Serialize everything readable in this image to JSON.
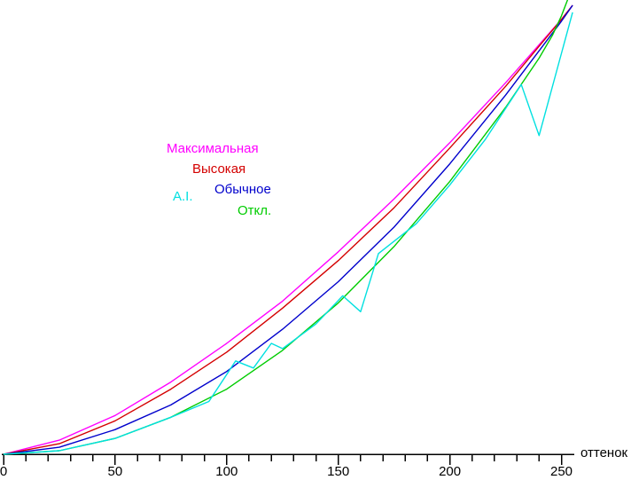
{
  "chart_data": {
    "type": "line",
    "title": "",
    "xlabel": "оттенок",
    "ylabel": "",
    "xlim": [
      0,
      255
    ],
    "ylim": [
      0,
      258
    ],
    "grid": false,
    "axis_color": "#000000",
    "background_color": "#ffffff",
    "x_ticks": [
      0,
      50,
      100,
      150,
      200,
      250
    ],
    "x_minor_tick_step": 10,
    "legend_position": "upper-center-left, colored text only",
    "series": [
      {
        "key": "maksimalnaya",
        "name": "Максимальная",
        "color": "#ff00ff",
        "points": [
          [
            0,
            0
          ],
          [
            25,
            8
          ],
          [
            50,
            22
          ],
          [
            75,
            41
          ],
          [
            100,
            63
          ],
          [
            125,
            87
          ],
          [
            150,
            115
          ],
          [
            175,
            145
          ],
          [
            200,
            177
          ],
          [
            225,
            211
          ],
          [
            250,
            247
          ],
          [
            255,
            255
          ]
        ]
      },
      {
        "key": "vysokaya",
        "name": "Высокая",
        "color": "#d40000",
        "points": [
          [
            0,
            0
          ],
          [
            25,
            6
          ],
          [
            50,
            19
          ],
          [
            75,
            37
          ],
          [
            100,
            58
          ],
          [
            125,
            83
          ],
          [
            150,
            110
          ],
          [
            175,
            140
          ],
          [
            200,
            174
          ],
          [
            225,
            209
          ],
          [
            250,
            247
          ],
          [
            255,
            255
          ]
        ]
      },
      {
        "key": "obychnoe",
        "name": "Обычное",
        "color": "#0000cc",
        "points": [
          [
            0,
            0
          ],
          [
            25,
            4
          ],
          [
            50,
            14
          ],
          [
            75,
            28
          ],
          [
            100,
            47
          ],
          [
            125,
            71
          ],
          [
            150,
            98
          ],
          [
            175,
            129
          ],
          [
            200,
            165
          ],
          [
            225,
            204
          ],
          [
            250,
            246
          ],
          [
            255,
            255
          ]
        ]
      },
      {
        "key": "otkl",
        "name": "Откл.",
        "color": "#00cc00",
        "points": [
          [
            0,
            0
          ],
          [
            25,
            2
          ],
          [
            50,
            9
          ],
          [
            75,
            21
          ],
          [
            100,
            37
          ],
          [
            125,
            59
          ],
          [
            150,
            86
          ],
          [
            175,
            118
          ],
          [
            200,
            155
          ],
          [
            225,
            197
          ],
          [
            240,
            225
          ],
          [
            246,
            238
          ],
          [
            250,
            249
          ],
          [
            253,
            259
          ]
        ]
      },
      {
        "key": "ai",
        "name": "A.I.",
        "color": "#00e0e0",
        "points": [
          [
            0,
            0
          ],
          [
            25,
            2
          ],
          [
            50,
            9
          ],
          [
            75,
            21
          ],
          [
            92,
            30
          ],
          [
            104,
            53
          ],
          [
            112,
            49
          ],
          [
            120,
            63
          ],
          [
            125,
            60
          ],
          [
            140,
            74
          ],
          [
            152,
            90
          ],
          [
            160,
            81
          ],
          [
            168,
            114
          ],
          [
            185,
            131
          ],
          [
            200,
            153
          ],
          [
            216,
            179
          ],
          [
            232,
            210
          ],
          [
            240,
            181
          ],
          [
            255,
            251
          ]
        ]
      }
    ]
  }
}
